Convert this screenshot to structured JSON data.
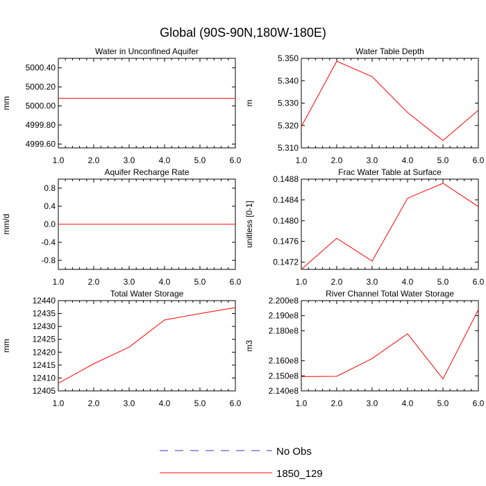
{
  "figure": {
    "title": "Global (90S-90N,180W-180E)"
  },
  "chart_data": [
    {
      "type": "line",
      "title": "Water in Unconfined Aquifer",
      "ylabel": "mm",
      "x": [
        1,
        2,
        3,
        4,
        5,
        6
      ],
      "xticks": [
        "1.0",
        "2.0",
        "3.0",
        "4.0",
        "5.0",
        "6.0"
      ],
      "xlim": [
        1,
        6
      ],
      "ylim": [
        4999.56,
        5000.5
      ],
      "yticks": [
        5000.4,
        5000.2,
        5000.0,
        4999.8,
        4999.6
      ],
      "ytick_labels": [
        "5000.40",
        "5000.20",
        "5000.00",
        "4999.80",
        "4999.60"
      ],
      "series": [
        {
          "name": "1850_129",
          "values": [
            5000.08,
            5000.08,
            5000.08,
            5000.08,
            5000.08,
            5000.08
          ]
        }
      ]
    },
    {
      "type": "line",
      "title": "Water Table Depth",
      "ylabel": "m",
      "x": [
        1,
        2,
        3,
        4,
        5,
        6
      ],
      "xticks": [
        "1.0",
        "2.0",
        "3.0",
        "4.0",
        "5.0",
        "6.0"
      ],
      "xlim": [
        1,
        6
      ],
      "ylim": [
        5.31,
        5.35
      ],
      "yticks": [
        5.35,
        5.34,
        5.33,
        5.32,
        5.31
      ],
      "ytick_labels": [
        "5.350",
        "5.340",
        "5.330",
        "5.320",
        "5.310"
      ],
      "series": [
        {
          "name": "1850_129",
          "values": [
            5.3195,
            5.3487,
            5.3418,
            5.3258,
            5.3133,
            5.3268
          ]
        }
      ]
    },
    {
      "type": "line",
      "title": "Aquifer Recharge Rate",
      "ylabel": "mm/d",
      "x": [
        1,
        2,
        3,
        4,
        5,
        6
      ],
      "xticks": [
        "1.0",
        "2.0",
        "3.0",
        "4.0",
        "5.0",
        "6.0"
      ],
      "xlim": [
        1,
        6
      ],
      "ylim": [
        -1.0,
        1.0
      ],
      "yticks": [
        0.8,
        0.4,
        0.0,
        -0.4,
        -0.8
      ],
      "ytick_labels": [
        "0.8",
        "0.4",
        "0.0",
        "-0.4",
        "-0.8"
      ],
      "series": [
        {
          "name": "1850_129",
          "values": [
            0.0,
            0.0,
            0.0,
            0.0,
            0.0,
            0.0
          ]
        }
      ]
    },
    {
      "type": "line",
      "title": "Frac Water Table at Surface",
      "ylabel": "unitless [0-1]",
      "x": [
        1,
        2,
        3,
        4,
        5,
        6
      ],
      "xticks": [
        "1.0",
        "2.0",
        "3.0",
        "4.0",
        "5.0",
        "6.0"
      ],
      "xlim": [
        1,
        6
      ],
      "ylim": [
        0.14706,
        0.1488
      ],
      "yticks": [
        0.1488,
        0.1484,
        0.148,
        0.1476,
        0.1472
      ],
      "ytick_labels": [
        "0.1488",
        "0.1484",
        "0.1480",
        "0.1476",
        "0.1472"
      ],
      "series": [
        {
          "name": "1850_129",
          "values": [
            0.14706,
            0.14766,
            0.14722,
            0.14843,
            0.14872,
            0.14827
          ]
        }
      ]
    },
    {
      "type": "line",
      "title": "Total Water Storage",
      "ylabel": "mm",
      "x": [
        1,
        2,
        3,
        4,
        5,
        6
      ],
      "xticks": [
        "1.0",
        "2.0",
        "3.0",
        "4.0",
        "5.0",
        "6.0"
      ],
      "xlim": [
        1,
        6
      ],
      "ylim": [
        12405,
        12440
      ],
      "yticks": [
        12440,
        12435,
        12430,
        12425,
        12420,
        12415,
        12410,
        12405
      ],
      "ytick_labels": [
        "12440",
        "12435",
        "12430",
        "12425",
        "12420",
        "12415",
        "12410",
        "12405"
      ],
      "series": [
        {
          "name": "1850_129",
          "values": [
            12408,
            12415.5,
            12422,
            12432.5,
            12435,
            12437.3
          ]
        }
      ]
    },
    {
      "type": "line",
      "title": "River Channel Total Water Storage",
      "ylabel": "m3",
      "x": [
        1,
        2,
        3,
        4,
        5,
        6
      ],
      "xticks": [
        "1.0",
        "2.0",
        "3.0",
        "4.0",
        "5.0",
        "6.0"
      ],
      "xlim": [
        1,
        6
      ],
      "ylim": [
        214000000,
        220000000
      ],
      "yticks": [
        220000000,
        219000000,
        218000000,
        216000000,
        215000000,
        214000000
      ],
      "ytick_labels": [
        "2.200e8",
        "2.190e8",
        "2.180e8",
        "2.160e8",
        "2.150e8",
        "2.140e8"
      ],
      "series": [
        {
          "name": "1850_129",
          "values": [
            214950000,
            214970000,
            216150000,
            217800000,
            214800000,
            219400000
          ]
        }
      ]
    }
  ],
  "legend": {
    "placement": "bottom-center",
    "items": [
      {
        "label": "No Obs",
        "color": "#3333cc",
        "style": "dashed"
      },
      {
        "label": "1850_129",
        "color": "#ff0000",
        "style": "solid"
      }
    ]
  },
  "colors": {
    "series": "#ff0000",
    "axis": "#000000"
  }
}
